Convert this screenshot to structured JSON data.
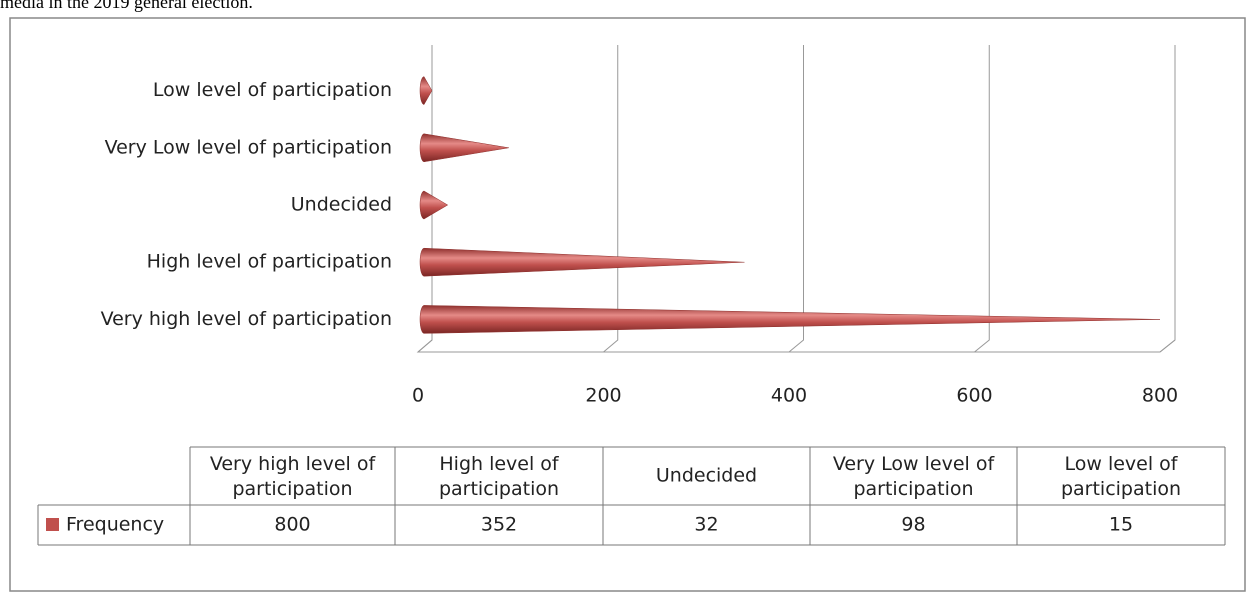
{
  "caption": "media in the 2019 general election.",
  "chart_data": {
    "type": "bar",
    "orientation": "horizontal",
    "categories": [
      "Very high level of participation",
      "High level of participation",
      "Undecided",
      "Very Low level of participation",
      "Low level of participation"
    ],
    "series": [
      {
        "name": "Frequency",
        "color": "#c0504d",
        "values": [
          800,
          352,
          32,
          98,
          15
        ]
      }
    ],
    "xlim": [
      0,
      800
    ],
    "xticks": [
      0,
      200,
      400,
      600,
      800
    ],
    "grid": true
  }
}
